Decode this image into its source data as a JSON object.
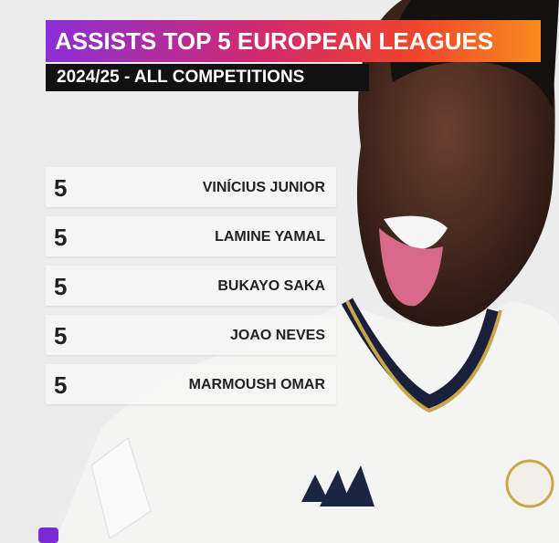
{
  "header": {
    "title": "ASSISTS TOP 5 EUROPEAN LEAGUES",
    "subtitle": "2024/25 - ALL COMPETITIONS"
  },
  "rows": [
    {
      "value": 5,
      "name": "VINÍCIUS JUNIOR"
    },
    {
      "value": 5,
      "name": "LAMINE YAMAL"
    },
    {
      "value": 5,
      "name": "BUKAYO SAKA"
    },
    {
      "value": 5,
      "name": "JOAO NEVES"
    },
    {
      "value": 5,
      "name": "MARMOUSH OMAR"
    }
  ]
}
